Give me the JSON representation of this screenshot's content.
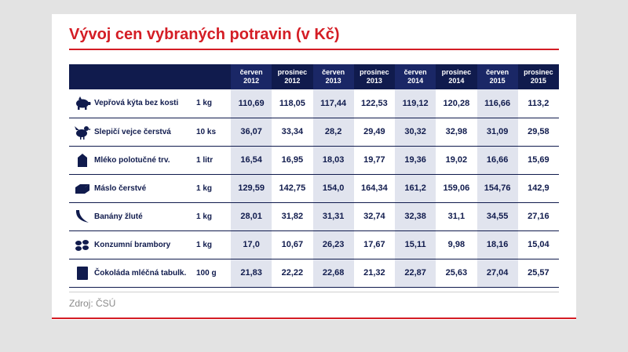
{
  "title": "Vývoj cen vybraných potravin (v Kč)",
  "source": "Zdroj: ČSÚ",
  "colors": {
    "title_red": "#d41d25",
    "header_navy": "#101b4d",
    "stripe": "#e1e4ee"
  },
  "chart_data": {
    "type": "table",
    "title": "Vývoj cen vybraných potravin (v Kč)",
    "columns": [
      {
        "month": "červen",
        "year": "2012"
      },
      {
        "month": "prosinec",
        "year": "2012"
      },
      {
        "month": "červen",
        "year": "2013"
      },
      {
        "month": "prosinec",
        "year": "2013"
      },
      {
        "month": "červen",
        "year": "2014"
      },
      {
        "month": "prosinec",
        "year": "2014"
      },
      {
        "month": "červen",
        "year": "2015"
      },
      {
        "month": "prosinec",
        "year": "2015"
      }
    ],
    "rows": [
      {
        "icon": "pig-icon",
        "name": "Vepřová kýta bez kosti",
        "unit": "1 kg",
        "values": [
          "110,69",
          "118,05",
          "117,44",
          "122,53",
          "119,12",
          "120,28",
          "116,66",
          "113,2"
        ]
      },
      {
        "icon": "hen-icon",
        "name": "Slepičí vejce čerstvá",
        "unit": "10 ks",
        "values": [
          "36,07",
          "33,34",
          "28,2",
          "29,49",
          "30,32",
          "32,98",
          "31,09",
          "29,58"
        ]
      },
      {
        "icon": "milk-carton-icon",
        "name": "Mléko polotučné trv.",
        "unit": "1 litr",
        "values": [
          "16,54",
          "16,95",
          "18,03",
          "19,77",
          "19,36",
          "19,02",
          "16,66",
          "15,69"
        ]
      },
      {
        "icon": "butter-icon",
        "name": "Máslo čerstvé",
        "unit": "1 kg",
        "values": [
          "129,59",
          "142,75",
          "154,0",
          "164,34",
          "161,2",
          "159,06",
          "154,76",
          "142,9"
        ]
      },
      {
        "icon": "banana-icon",
        "name": "Banány žluté",
        "unit": "1 kg",
        "values": [
          "28,01",
          "31,82",
          "31,31",
          "32,74",
          "32,38",
          "31,1",
          "34,55",
          "27,16"
        ]
      },
      {
        "icon": "potatoes-icon",
        "name": "Konzumní brambory",
        "unit": "1 kg",
        "values": [
          "17,0",
          "10,67",
          "26,23",
          "17,67",
          "15,11",
          "9,98",
          "18,16",
          "15,04"
        ]
      },
      {
        "icon": "chocolate-icon",
        "name": "Čokoláda mléčná tabulk.",
        "unit": "100 g",
        "values": [
          "21,83",
          "22,22",
          "22,68",
          "21,32",
          "22,87",
          "25,63",
          "27,04",
          "25,57"
        ]
      }
    ]
  }
}
